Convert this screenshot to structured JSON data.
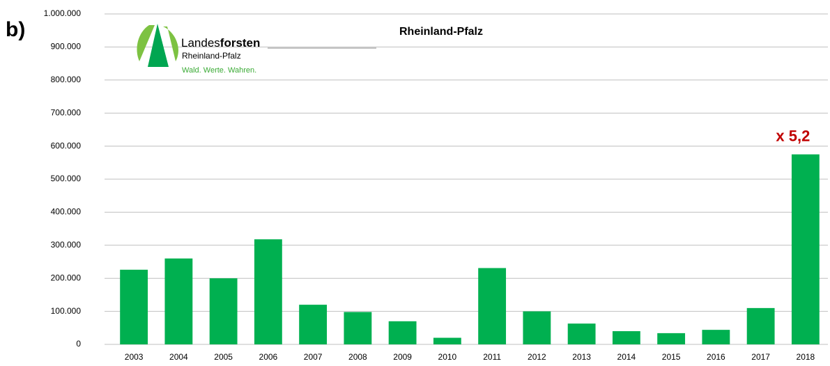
{
  "panel_label": "b)",
  "logo": {
    "name_light": "Landes",
    "name_bold": "forsten",
    "region": "Rheinland-Pfalz",
    "slogan": "Wald. Werte. Wahren."
  },
  "chart_data": {
    "type": "bar",
    "title": "Rheinland-Pfalz",
    "annotation": "x 5,2",
    "categories": [
      "2003",
      "2004",
      "2005",
      "2006",
      "2007",
      "2008",
      "2009",
      "2010",
      "2011",
      "2012",
      "2013",
      "2014",
      "2015",
      "2016",
      "2017",
      "2018"
    ],
    "values": [
      226000,
      260000,
      200000,
      318000,
      120000,
      98000,
      70000,
      20000,
      231000,
      100000,
      63000,
      40000,
      34000,
      44000,
      110000,
      575000
    ],
    "color": "#00b050",
    "annotation_color": "#c00000",
    "ylim": [
      0,
      1000000
    ],
    "yticks": [
      0,
      {
        "value": 100000,
        "label": "100.000"
      },
      {
        "value": 200000,
        "label": "200.000"
      },
      {
        "value": 300000,
        "label": "300.000"
      },
      {
        "value": 400000,
        "label": "400.000"
      },
      {
        "value": 500000,
        "label": "500.000"
      },
      {
        "value": 600000,
        "label": "600.000"
      },
      {
        "value": 700000,
        "label": "700.000"
      },
      {
        "value": 800000,
        "label": "800.000"
      },
      {
        "value": 900000,
        "label": "900.000"
      },
      {
        "value": 1000000,
        "label": "1.000.000"
      }
    ],
    "grid": true
  }
}
